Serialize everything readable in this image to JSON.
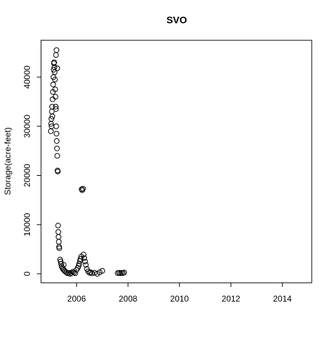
{
  "chart_data": {
    "type": "scatter",
    "title": "SVO",
    "y_label": "Storage(acre-feet)",
    "x": [
      2005.0,
      2005.01,
      2005.02,
      2005.03,
      2005.04,
      2005.05,
      2005.06,
      2005.07,
      2005.08,
      2005.09,
      2005.1,
      2005.11,
      2005.12,
      2005.13,
      2005.14,
      2005.15,
      2005.16,
      2005.17,
      2005.18,
      2005.19,
      2005.2,
      2005.21,
      2005.22,
      2005.23,
      2005.24,
      2005.25,
      2005.26,
      2005.27,
      2005.2,
      2005.22,
      2005.25,
      2005.28,
      2005.29,
      2005.3,
      2005.31,
      2005.32,
      2005.33,
      2005.36,
      2005.38,
      2005.4,
      2005.42,
      2005.45,
      2005.48,
      2005.5,
      2005.52,
      2005.55,
      2005.6,
      2005.65,
      2005.7,
      2005.75,
      2005.8,
      2005.85,
      2005.9,
      2005.95,
      2006.0,
      2006.05,
      2006.08,
      2006.1,
      2006.13,
      2006.15,
      2006.18,
      2006.2,
      2006.22,
      2006.25,
      2006.27,
      2006.3,
      2006.33,
      2006.36,
      2006.4,
      2006.45,
      2006.5,
      2006.55,
      2006.6,
      2006.7,
      2006.8,
      2006.9,
      2007.0,
      2007.6,
      2007.65,
      2007.7,
      2007.75,
      2007.8,
      2007.85
    ],
    "values": [
      29000,
      30500,
      31500,
      30000,
      33000,
      34000,
      32000,
      35500,
      37000,
      38500,
      40000,
      41500,
      42800,
      43000,
      42000,
      41000,
      39500,
      37500,
      36000,
      34000,
      33500,
      30000,
      28500,
      27000,
      25500,
      24000,
      21000,
      20800,
      44500,
      45500,
      41800,
      9800,
      8500,
      7500,
      6500,
      5500,
      5200,
      2900,
      2500,
      2000,
      1500,
      1200,
      900,
      1800,
      700,
      500,
      300,
      100,
      200,
      0,
      150,
      400,
      250,
      100,
      800,
      1200,
      1600,
      2000,
      2600,
      3000,
      3500,
      17200,
      17000,
      17300,
      3900,
      3200,
      2500,
      1800,
      1000,
      500,
      200,
      300,
      100,
      200,
      0,
      300,
      600,
      150,
      200,
      100,
      200,
      150,
      250
    ],
    "color": "#000000",
    "xlim": [
      2004.62,
      2015.14
    ],
    "xticks": [
      2006,
      2008,
      2010,
      2012,
      2014
    ],
    "ylim": [
      -1837,
      47490
    ],
    "yticks": [
      0,
      10000,
      20000,
      30000,
      40000
    ]
  }
}
